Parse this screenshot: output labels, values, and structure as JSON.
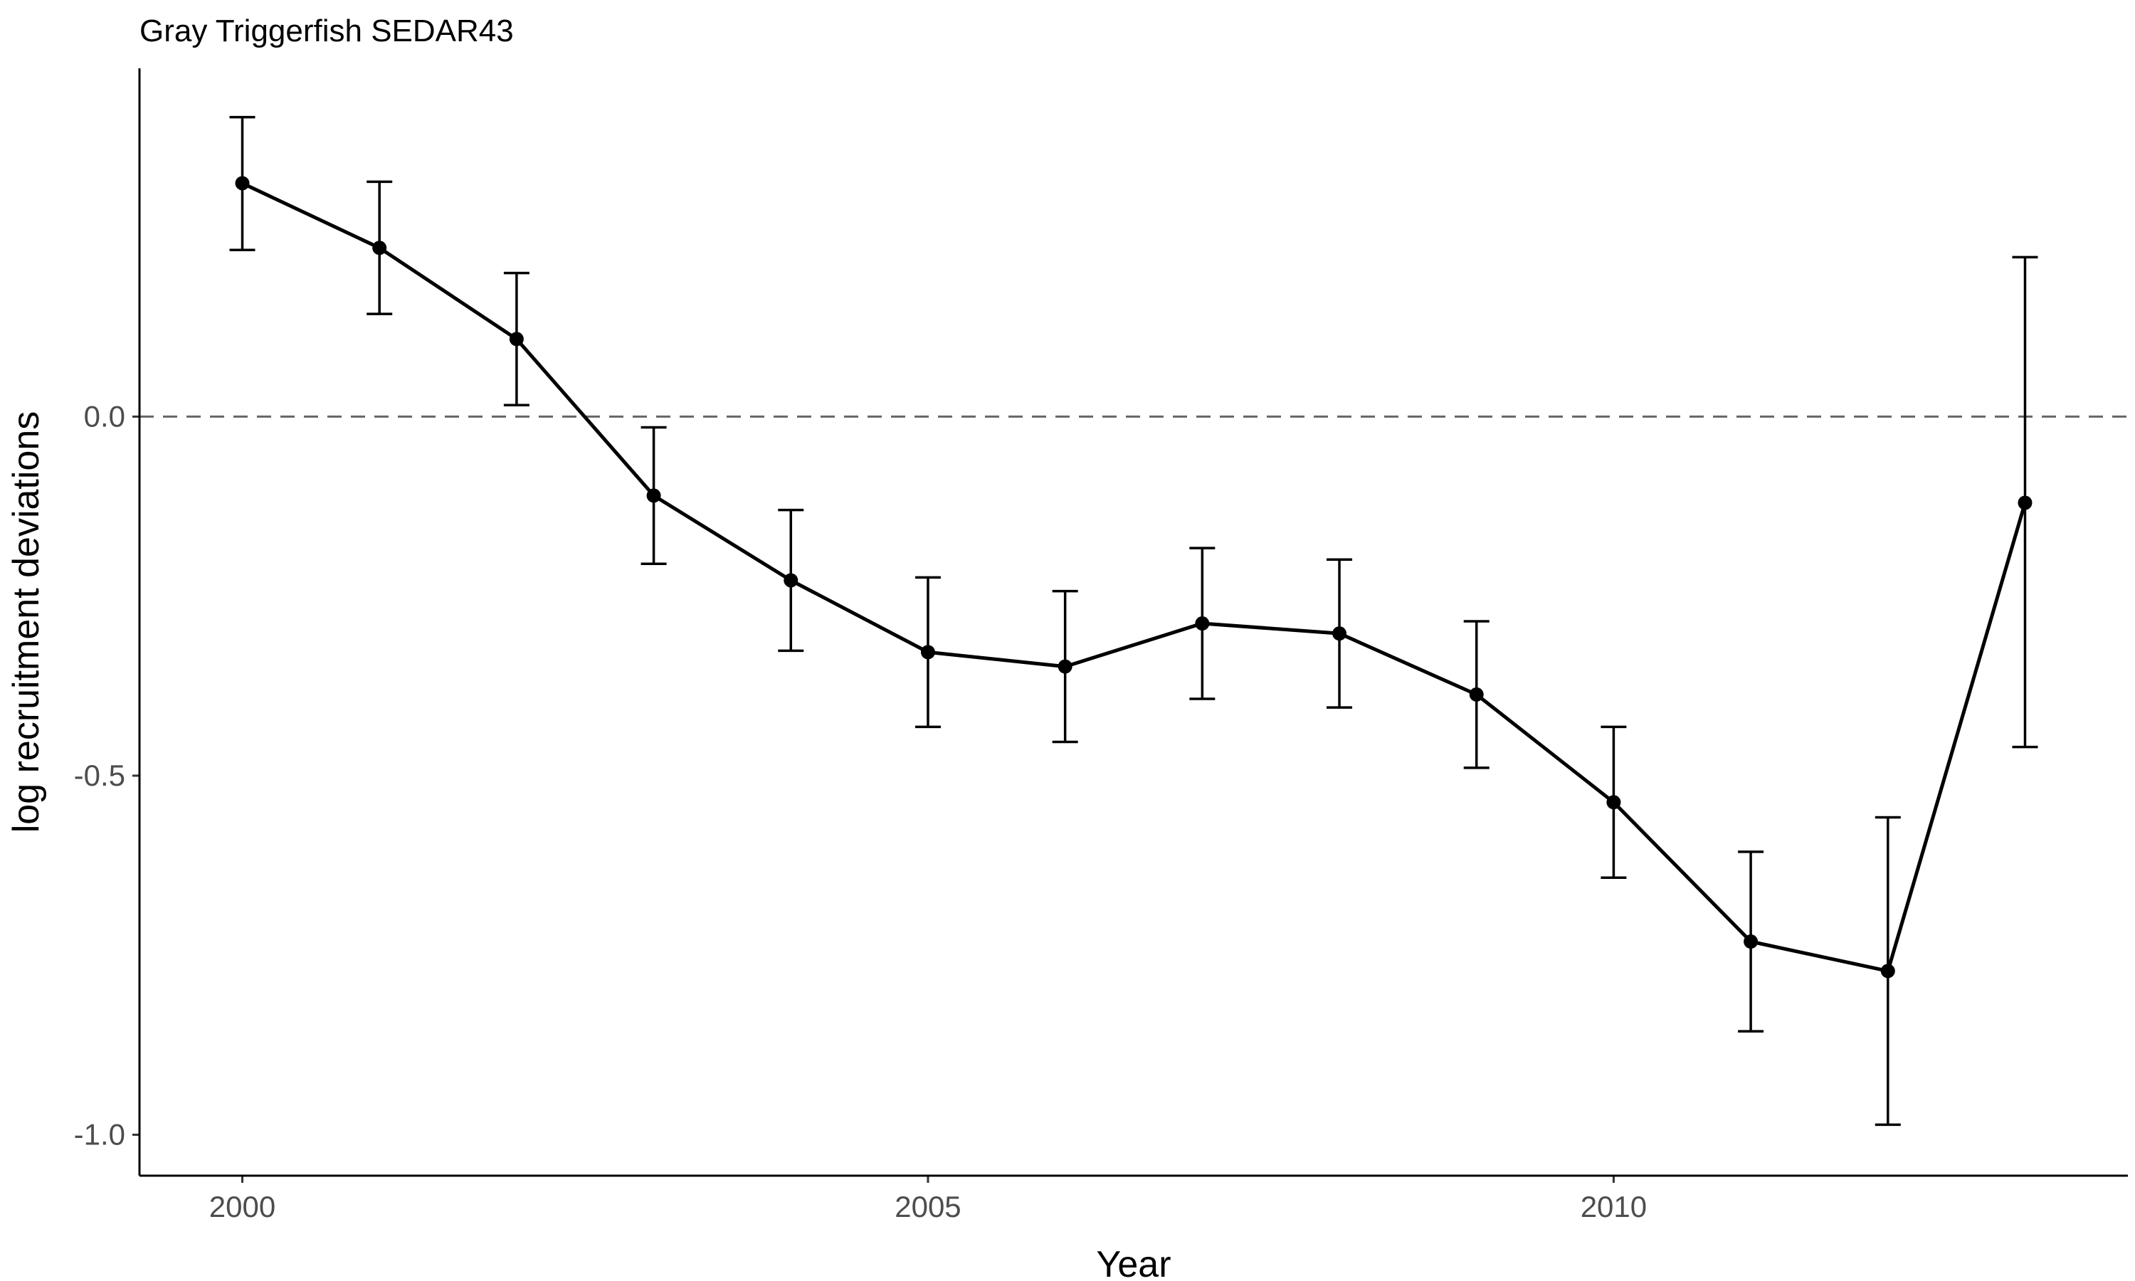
{
  "chart_data": {
    "type": "line",
    "title": "Gray Triggerfish SEDAR43",
    "xlabel": "Year",
    "ylabel": "log recruitment deviations",
    "x": [
      2000,
      2001,
      2002,
      2003,
      2004,
      2005,
      2006,
      2007,
      2008,
      2009,
      2010,
      2011,
      2012,
      2013
    ],
    "series": [
      {
        "values": [
          0.325,
          0.235,
          0.108,
          -0.11,
          -0.228,
          -0.328,
          -0.348,
          -0.288,
          -0.302,
          -0.387,
          -0.537,
          -0.731,
          -0.772,
          -0.12
        ],
        "lower": [
          0.232,
          0.143,
          0.016,
          -0.205,
          -0.326,
          -0.432,
          -0.453,
          -0.393,
          -0.405,
          -0.489,
          -0.642,
          -0.856,
          -0.986,
          -0.46
        ],
        "upper": [
          0.417,
          0.327,
          0.2,
          -0.015,
          -0.13,
          -0.224,
          -0.243,
          -0.183,
          -0.199,
          -0.285,
          -0.432,
          -0.606,
          -0.558,
          0.222
        ]
      }
    ],
    "xticks": [
      2000,
      2005,
      2010
    ],
    "xtick_labels": [
      "2000",
      "2005",
      "2010"
    ],
    "yticks": [
      -1.0,
      -0.5,
      0.0
    ],
    "ytick_labels": [
      "-1.0",
      "-0.5",
      "0.0"
    ],
    "xlim": [
      1999.25,
      2013.75
    ],
    "ylim": [
      -1.057,
      0.485
    ],
    "reference_line": {
      "y": 0,
      "style": "dashed",
      "color": "#666666"
    },
    "line_color": "#000000",
    "grid": false,
    "legend": "none"
  }
}
